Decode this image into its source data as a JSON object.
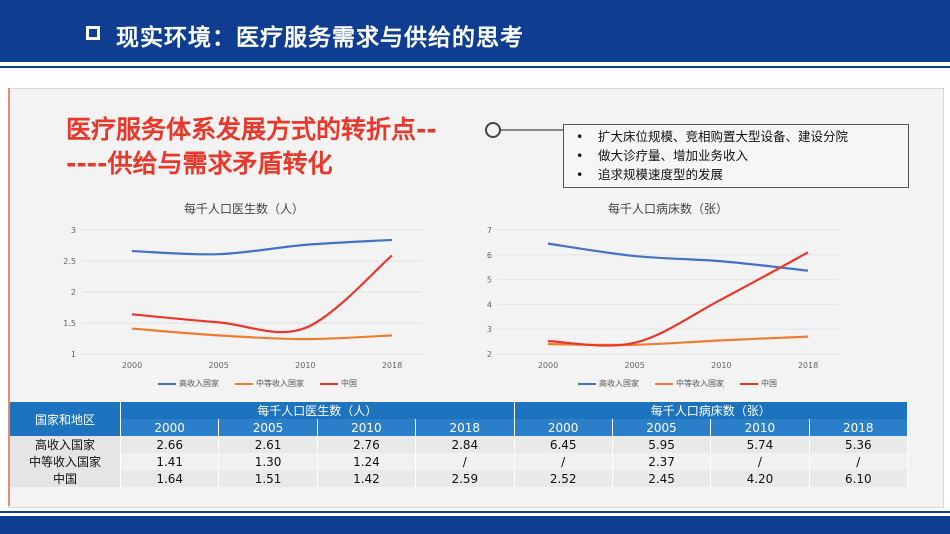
{
  "header": {
    "title": "现实环境：医疗服务需求与供给的思考"
  },
  "slide": {
    "title_line1": "医疗服务体系发展方式的转折点--",
    "title_line2": "----供给与需求矛盾转化",
    "bullets": [
      "扩大床位规模、竞相购置大型设备、建设分院",
      "做大诊疗量、增加业务收入",
      "追求规模速度型的发展"
    ]
  },
  "chart_data": [
    {
      "type": "line",
      "title": "每千人口医生数（人）",
      "x": [
        "2000",
        "2005",
        "2010",
        "2018"
      ],
      "ylim": [
        1,
        3
      ],
      "yticks": [
        "1",
        "1.5",
        "2",
        "2.5",
        "3"
      ],
      "series": [
        {
          "name": "高收入国家",
          "color": "#4472c4",
          "values": [
            2.66,
            2.61,
            2.76,
            2.84
          ]
        },
        {
          "name": "中等收入国家",
          "color": "#ed7d31",
          "values": [
            1.41,
            1.3,
            1.24,
            1.3
          ]
        },
        {
          "name": "中国",
          "color": "#e8382c",
          "values": [
            1.64,
            1.51,
            1.42,
            2.59
          ]
        }
      ]
    },
    {
      "type": "line",
      "title": "每千人口病床数（张）",
      "x": [
        "2000",
        "2005",
        "2010",
        "2018"
      ],
      "ylim": [
        2,
        7
      ],
      "yticks": [
        "2",
        "3",
        "4",
        "5",
        "6",
        "7"
      ],
      "series": [
        {
          "name": "高收入国家",
          "color": "#4472c4",
          "values": [
            6.45,
            5.95,
            5.74,
            5.36
          ]
        },
        {
          "name": "中等收入国家",
          "color": "#ed7d31",
          "values": [
            2.4,
            2.37,
            2.55,
            2.7
          ]
        },
        {
          "name": "中国",
          "color": "#e8382c",
          "values": [
            2.52,
            2.45,
            4.2,
            6.1
          ]
        }
      ]
    }
  ],
  "table": {
    "corner": "国家和地区",
    "group1": "每千人口医生数（人）",
    "group2": "每千人口病床数（张）",
    "years": [
      "2000",
      "2005",
      "2010",
      "2018",
      "2000",
      "2005",
      "2010",
      "2018"
    ],
    "rows": [
      {
        "label": "高收入国家",
        "values": [
          "2.66",
          "2.61",
          "2.76",
          "2.84",
          "6.45",
          "5.95",
          "5.74",
          "5.36"
        ]
      },
      {
        "label": "中等收入国家",
        "values": [
          "1.41",
          "1.30",
          "1.24",
          "/",
          "/",
          "2.37",
          "/",
          "/"
        ]
      },
      {
        "label": "中国",
        "values": [
          "1.64",
          "1.51",
          "1.42",
          "2.59",
          "2.52",
          "2.45",
          "4.20",
          "6.10"
        ]
      }
    ]
  }
}
